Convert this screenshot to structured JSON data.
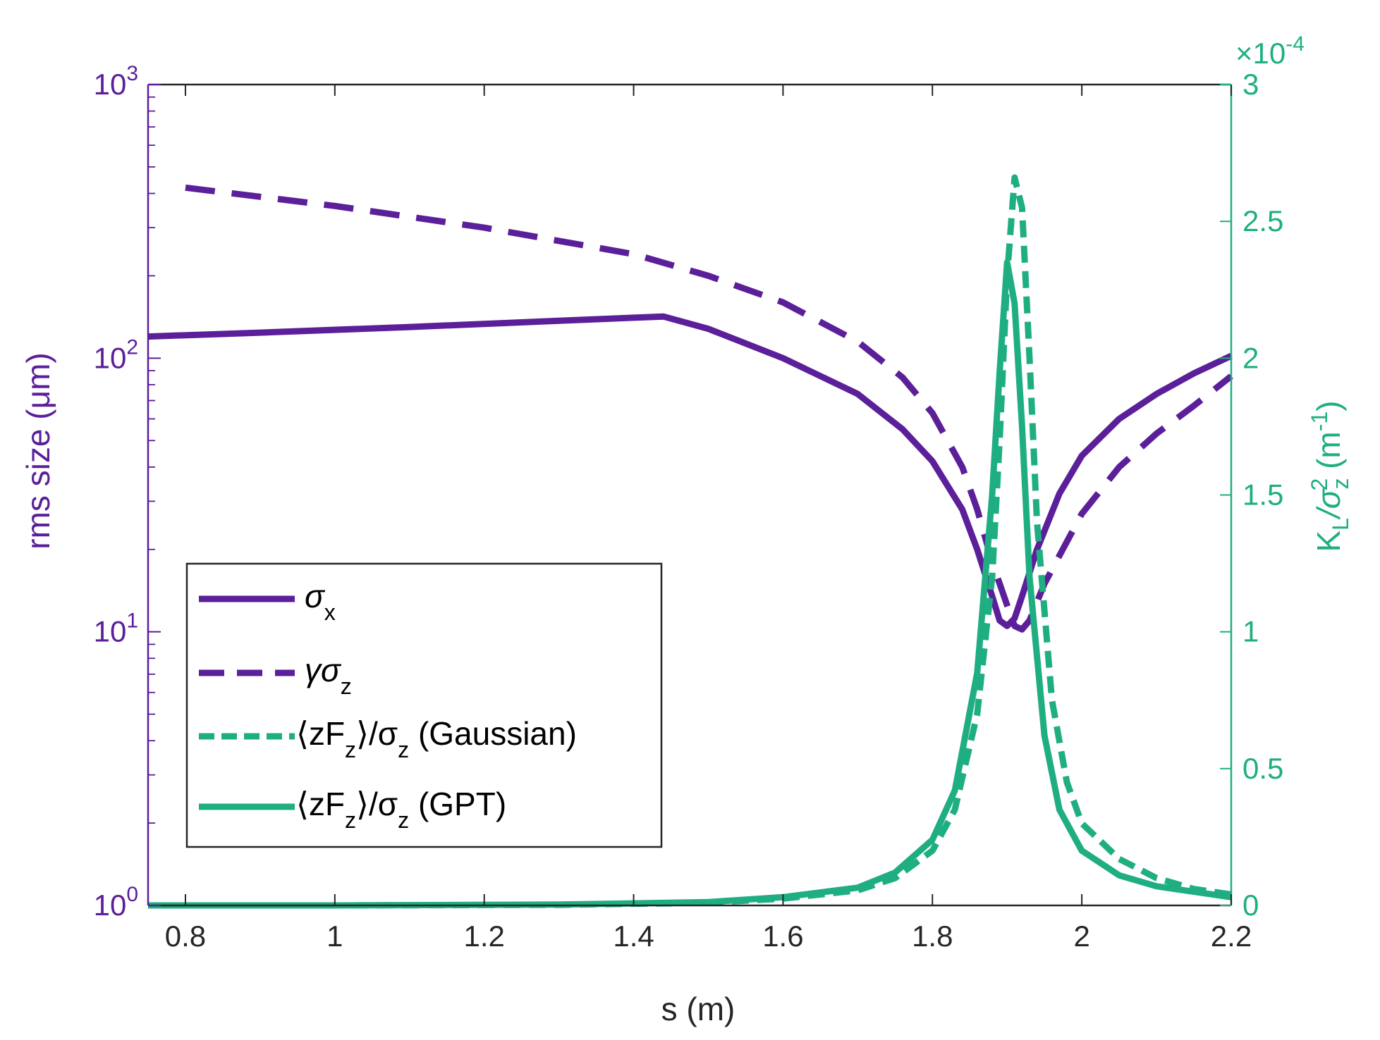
{
  "chart_data": {
    "type": "line",
    "xlabel": "s (m)",
    "ylabel_left": "rms size (μm)",
    "ylabel_right": "K_L/σ_z^2 (m^-1)",
    "ylabel_right_parts": {
      "k": "K",
      "l": "L",
      "slash": "/σ",
      "z": "z",
      "sq": "2",
      "unit": " (m",
      "neg": "-1",
      "close": ")"
    },
    "right_multiplier": {
      "prefix": "×10",
      "exp": "-4"
    },
    "xlim": [
      0.75,
      2.2
    ],
    "ylim_left": [
      1,
      1000
    ],
    "yscale_left": "log",
    "ylim_right": [
      0,
      3
    ],
    "x_ticks": [
      "0.8",
      "1",
      "1.2",
      "1.4",
      "1.6",
      "1.8",
      "2",
      "2.2"
    ],
    "x_tick_values": [
      0.8,
      1.0,
      1.2,
      1.4,
      1.6,
      1.8,
      2.0,
      2.2
    ],
    "left_ticks": [
      {
        "value": 1,
        "base": "10",
        "exp": "0"
      },
      {
        "value": 10,
        "base": "10",
        "exp": "1"
      },
      {
        "value": 100,
        "base": "10",
        "exp": "2"
      },
      {
        "value": 1000,
        "base": "10",
        "exp": "3"
      }
    ],
    "right_ticks": [
      "0",
      "0.5",
      "1",
      "1.5",
      "2",
      "2.5",
      "3"
    ],
    "right_tick_values": [
      0,
      0.5,
      1,
      1.5,
      2,
      2.5,
      3
    ],
    "colors": {
      "purple": "#5b1f9a",
      "green": "#1fae82"
    },
    "series": [
      {
        "name": "σx",
        "axis": "left",
        "style": "solid",
        "color": "#5b1f9a",
        "x": [
          0.75,
          0.9,
          1.1,
          1.3,
          1.44,
          1.5,
          1.6,
          1.7,
          1.76,
          1.8,
          1.84,
          1.86,
          1.88,
          1.89,
          1.9,
          1.91,
          1.92,
          1.94,
          1.97,
          2.0,
          2.05,
          2.1,
          2.15,
          2.2
        ],
        "y": [
          120,
          124,
          130,
          137,
          142,
          128,
          100,
          74,
          55,
          42,
          28,
          20,
          13.5,
          11,
          10.5,
          11.2,
          13.5,
          20,
          32,
          44,
          60,
          74,
          88,
          102
        ]
      },
      {
        "name": "γσz",
        "axis": "left",
        "style": "dashed",
        "color": "#5b1f9a",
        "x": [
          0.8,
          1.0,
          1.2,
          1.4,
          1.5,
          1.6,
          1.7,
          1.76,
          1.8,
          1.84,
          1.86,
          1.88,
          1.9,
          1.91,
          1.92,
          1.93,
          1.95,
          2.0,
          2.05,
          2.1,
          2.15,
          2.2
        ],
        "y": [
          420,
          360,
          300,
          240,
          200,
          160,
          115,
          85,
          63,
          40,
          28,
          18,
          12.5,
          10.5,
          10.2,
          11,
          15,
          27,
          40,
          53,
          67,
          86
        ]
      },
      {
        "name": "⟨zFz⟩/σz (Gaussian)",
        "axis": "right",
        "style": "dashed",
        "color": "#1fae82",
        "x": [
          0.75,
          1.0,
          1.3,
          1.5,
          1.6,
          1.7,
          1.75,
          1.8,
          1.83,
          1.86,
          1.88,
          1.89,
          1.9,
          1.91,
          1.92,
          1.93,
          1.94,
          1.96,
          1.98,
          2.0,
          2.05,
          2.1,
          2.15,
          2.2
        ],
        "y": [
          0,
          0,
          0.002,
          0.01,
          0.025,
          0.055,
          0.1,
          0.2,
          0.35,
          0.7,
          1.2,
          1.7,
          2.3,
          2.66,
          2.55,
          2.0,
          1.4,
          0.75,
          0.45,
          0.3,
          0.17,
          0.1,
          0.06,
          0.04
        ]
      },
      {
        "name": "⟨zFz⟩/σz (GPT)",
        "axis": "right",
        "style": "solid",
        "color": "#1fae82",
        "x": [
          0.75,
          1.0,
          1.3,
          1.5,
          1.6,
          1.7,
          1.75,
          1.8,
          1.83,
          1.86,
          1.88,
          1.89,
          1.9,
          1.91,
          1.92,
          1.93,
          1.95,
          1.97,
          2.0,
          2.05,
          2.1,
          2.15,
          2.2
        ],
        "y": [
          0,
          0,
          0.003,
          0.012,
          0.03,
          0.065,
          0.12,
          0.24,
          0.42,
          0.85,
          1.5,
          1.95,
          2.35,
          2.2,
          1.75,
          1.2,
          0.62,
          0.35,
          0.2,
          0.11,
          0.07,
          0.05,
          0.03
        ]
      }
    ],
    "legend": {
      "position": "lower-left",
      "entries": [
        {
          "sym": "σ",
          "sub": "x",
          "rest": ""
        },
        {
          "sym": "γσ",
          "sub": "z",
          "rest": ""
        },
        {
          "sym": "⟨zF",
          "sub": "z",
          "mid": "⟩/σ",
          "sub2": "z",
          "rest": " (Gaussian)"
        },
        {
          "sym": "⟨zF",
          "sub": "z",
          "mid": "⟩/σ",
          "sub2": "z",
          "rest": " (GPT)"
        }
      ]
    }
  }
}
